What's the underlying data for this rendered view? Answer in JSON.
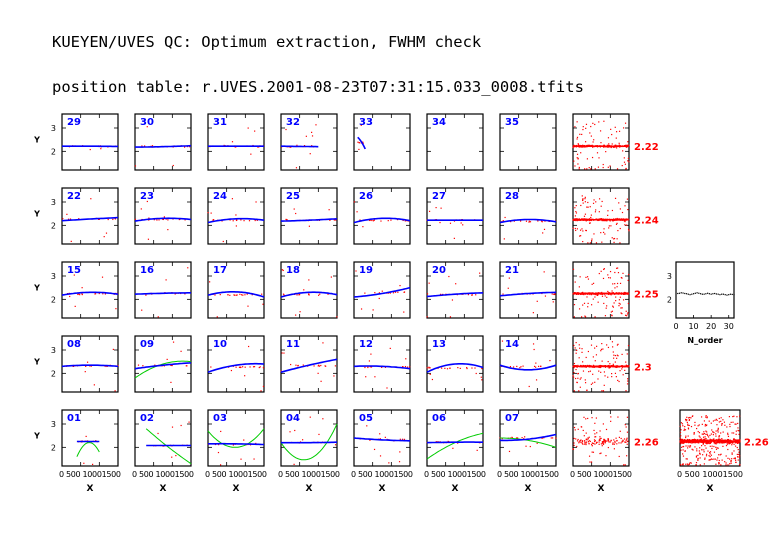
{
  "header": {
    "line1": "KUEYEN/UVES QC: Optimum extraction, FWHM check",
    "line2": "position table: r.UVES.2001-08-23T07:31:15.033_0008.tfits"
  },
  "colors": {
    "point": "#ff0000",
    "fit": "#0000ff",
    "poly": "#00cc00",
    "order_label": "#0000ff",
    "median_label": "#ff0000",
    "frame": "#000000"
  },
  "chart_data": {
    "type": "scatter",
    "xlabel": "X",
    "ylabel": "Y",
    "xlim": [
      0,
      1500
    ],
    "ylim": [
      1.2,
      3.6
    ],
    "yticks": [
      2,
      3
    ],
    "xtick_text": "0  500 10001500",
    "x_tick_values": [
      0,
      500,
      1000,
      1500
    ],
    "rows": [
      {
        "median": "2.22",
        "orders": [
          {
            "order": "29",
            "fit": [
              2.22,
              2.22,
              2.21
            ]
          },
          {
            "order": "30",
            "fit": [
              2.18,
              2.2,
              2.24
            ]
          },
          {
            "order": "31",
            "fit": [
              2.22,
              2.22,
              2.22
            ]
          },
          {
            "order": "32",
            "fit": [
              2.22,
              2.21,
              2.2
            ],
            "x_range": [
              0,
              1000
            ]
          },
          {
            "order": "33",
            "fit": [
              2.6,
              2.4,
              2.1
            ],
            "x_range": [
              100,
              300
            ]
          },
          {
            "order": "34",
            "fit": null
          },
          {
            "order": "35",
            "fit": null
          }
        ]
      },
      {
        "median": "2.24",
        "orders": [
          {
            "order": "22",
            "fit": [
              2.2,
              2.27,
              2.33
            ]
          },
          {
            "order": "23",
            "fit": [
              2.18,
              2.3,
              2.25
            ]
          },
          {
            "order": "24",
            "fit": [
              2.12,
              2.28,
              2.22
            ]
          },
          {
            "order": "25",
            "fit": [
              2.18,
              2.22,
              2.28
            ]
          },
          {
            "order": "26",
            "fit": [
              2.12,
              2.3,
              2.2
            ]
          },
          {
            "order": "27",
            "fit": [
              2.22,
              2.22,
              2.22
            ]
          },
          {
            "order": "28",
            "fit": [
              2.12,
              2.25,
              2.15
            ]
          }
        ]
      },
      {
        "median": "2.25",
        "orders": [
          {
            "order": "15",
            "fit": [
              2.18,
              2.3,
              2.22
            ]
          },
          {
            "order": "16",
            "fit": [
              2.22,
              2.26,
              2.28
            ]
          },
          {
            "order": "17",
            "fit": [
              2.18,
              2.32,
              2.1
            ]
          },
          {
            "order": "18",
            "fit": [
              2.1,
              2.3,
              2.2
            ]
          },
          {
            "order": "19",
            "fit": [
              2.1,
              2.25,
              2.5
            ]
          },
          {
            "order": "20",
            "fit": [
              2.12,
              2.22,
              2.28
            ]
          },
          {
            "order": "21",
            "fit": [
              2.15,
              2.25,
              2.3
            ]
          }
        ]
      },
      {
        "median": "2.3",
        "orders": [
          {
            "order": "08",
            "fit": [
              2.3,
              2.35,
              2.3
            ]
          },
          {
            "order": "09",
            "fit": [
              2.2,
              2.35,
              2.45
            ],
            "poly": [
              1.8,
              2.4,
              2.5
            ]
          },
          {
            "order": "10",
            "fit": [
              2.05,
              2.35,
              2.4
            ]
          },
          {
            "order": "11",
            "fit": [
              2.05,
              2.35,
              2.6
            ]
          },
          {
            "order": "12",
            "fit": [
              2.3,
              2.3,
              2.2
            ]
          },
          {
            "order": "13",
            "fit": [
              2.05,
              2.4,
              2.25
            ]
          },
          {
            "order": "14",
            "fit": [
              2.35,
              2.15,
              2.35
            ]
          }
        ]
      },
      {
        "median": "2.26",
        "orders": [
          {
            "order": "01",
            "fit": [
              2.25,
              2.25,
              2.25
            ],
            "x_range": [
              400,
              1000
            ],
            "poly": [
              1.6,
              2.2,
              1.8
            ]
          },
          {
            "order": "02",
            "fit": [
              2.08,
              2.08,
              2.08
            ],
            "x_range": [
              300,
              1500
            ],
            "poly": [
              2.8,
              2.0,
              1.3
            ]
          },
          {
            "order": "03",
            "fit": [
              2.15,
              2.15,
              2.12
            ],
            "poly": [
              2.7,
              2.0,
              2.8
            ]
          },
          {
            "order": "04",
            "fit": [
              2.2,
              2.2,
              2.22
            ],
            "poly": [
              2.2,
              1.5,
              3.0
            ]
          },
          {
            "order": "05",
            "fit": [
              2.4,
              2.32,
              2.28
            ]
          },
          {
            "order": "06",
            "fit": [
              2.2,
              2.22,
              2.22
            ],
            "poly": [
              1.5,
              2.2,
              2.6
            ]
          },
          {
            "order": "07",
            "fit": [
              2.3,
              2.35,
              2.55
            ],
            "poly": [
              2.4,
              2.3,
              2.0
            ]
          }
        ]
      }
    ],
    "order_panel": {
      "xlabel": "N_order",
      "xlim": [
        0,
        33
      ],
      "ylim": [
        1.2,
        3.6
      ],
      "yticks": [
        2,
        3
      ],
      "xticks": [
        0,
        10,
        20,
        30
      ],
      "values": [
        2.25,
        2.26,
        2.28,
        2.27,
        2.25,
        2.24,
        2.22,
        2.2,
        2.22,
        2.24,
        2.26,
        2.28,
        2.26,
        2.24,
        2.22,
        2.22,
        2.24,
        2.26,
        2.24,
        2.22,
        2.24,
        2.25,
        2.23,
        2.22,
        2.2,
        2.22,
        2.22,
        2.2,
        2.18,
        2.2,
        2.22,
        2.21,
        2.2
      ]
    },
    "all_panel": {
      "median": "2.26",
      "xlim": [
        0,
        1500
      ],
      "ylim": [
        1.2,
        3.6
      ],
      "xtick_text": "0  500 10001500"
    }
  }
}
